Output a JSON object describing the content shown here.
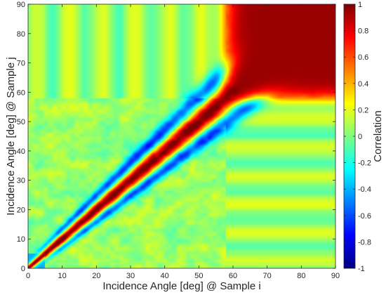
{
  "chart_data": {
    "type": "heatmap",
    "title": "",
    "xlabel": "Incidence Angle [deg] @ Sample i",
    "ylabel": "Incidence Angle [deg] @ Sample j",
    "xlim": [
      0,
      90
    ],
    "ylim": [
      0,
      90
    ],
    "xticks": [
      0,
      10,
      20,
      30,
      40,
      50,
      60,
      70,
      80,
      90
    ],
    "yticks": [
      0,
      10,
      20,
      30,
      40,
      50,
      60,
      70,
      80,
      90
    ],
    "colorbar": {
      "label": "Correlation",
      "range": [
        -1,
        1
      ],
      "ticks": [
        1,
        0.8,
        0.6,
        0.4,
        0.2,
        0,
        -0.2,
        -0.4,
        -0.6,
        -0.8,
        -1
      ],
      "tick_labels": [
        "1",
        "0.8",
        "0.6",
        "0.4",
        "0.2",
        "0",
        "-0.2",
        "-0.4",
        "-0.6",
        "-0.8",
        "-1"
      ],
      "colormap": "jet"
    },
    "grid": false,
    "structure": {
      "diagonal_value": 1.0,
      "diagonal_sidelobe_value": -0.7,
      "high_correlation_region": {
        "x_from": 58,
        "x_to": 90,
        "y_from": 58,
        "y_to": 90,
        "value": 0.95
      },
      "background_value": 0.05
    }
  },
  "colors": {
    "colormap_stops": [
      "#00007f",
      "#0000ff",
      "#007fff",
      "#00ffff",
      "#7fff7f",
      "#ffff00",
      "#ff7f00",
      "#ff0000",
      "#7f0000"
    ]
  }
}
